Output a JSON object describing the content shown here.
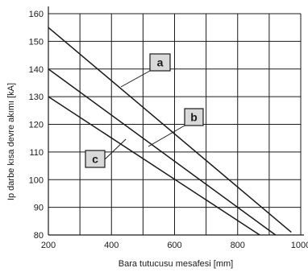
{
  "chart_data": {
    "type": "line",
    "title": "",
    "xlabel": "Bara tutucusu mesafesi [mm]",
    "ylabel": "Ip darbe kısa devre akımı [kA]",
    "xlim": [
      200,
      1000
    ],
    "ylim": [
      80,
      160
    ],
    "xticks": [
      200,
      400,
      600,
      800,
      1000
    ],
    "yticks": [
      80,
      90,
      100,
      110,
      120,
      130,
      140,
      150,
      160
    ],
    "grid": true,
    "series": [
      {
        "name": "a",
        "x": [
          200,
          970
        ],
        "y": [
          155,
          81
        ]
      },
      {
        "name": "b",
        "x": [
          200,
          920
        ],
        "y": [
          140,
          80
        ]
      },
      {
        "name": "c",
        "x": [
          200,
          870
        ],
        "y": [
          130,
          80
        ]
      }
    ],
    "annotations": [
      "a",
      "b",
      "c"
    ]
  },
  "colors": {
    "line": "#1a1a1a",
    "grid": "#1a1a1a",
    "callout_fill": "#d9d9d9"
  }
}
